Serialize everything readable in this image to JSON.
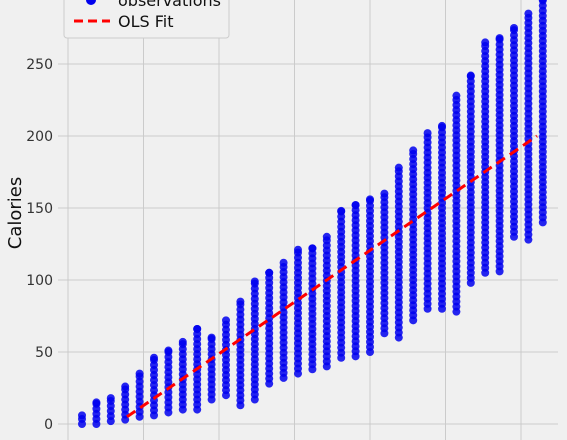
{
  "colors": {
    "background": "#f0f0f0",
    "grid": "#cbcbcb",
    "points": "#0000ee",
    "fit": "#ff0000"
  },
  "chart_data": {
    "type": "scatter",
    "ylabel": "Calories",
    "xlabel": "",
    "ylim": [
      -5,
      300
    ],
    "y_ticks": [
      0,
      50,
      100,
      150,
      200,
      250
    ],
    "x_grid_count": 7,
    "grid": true,
    "legend": {
      "placement": "top-left",
      "entries": [
        {
          "label": "observations",
          "style": "marker"
        },
        {
          "label": "OLS Fit",
          "style": "dashed-line"
        }
      ]
    },
    "observation_columns": [
      {
        "min": 0,
        "max": 6
      },
      {
        "min": 0,
        "max": 15
      },
      {
        "min": 2,
        "max": 18
      },
      {
        "min": 3,
        "max": 26
      },
      {
        "min": 5,
        "max": 35
      },
      {
        "min": 6,
        "max": 46
      },
      {
        "min": 8,
        "max": 51
      },
      {
        "min": 10,
        "max": 57
      },
      {
        "min": 10,
        "max": 66
      },
      {
        "min": 17,
        "max": 60
      },
      {
        "min": 20,
        "max": 72
      },
      {
        "min": 13,
        "max": 85
      },
      {
        "min": 17,
        "max": 99
      },
      {
        "min": 28,
        "max": 105
      },
      {
        "min": 32,
        "max": 112
      },
      {
        "min": 35,
        "max": 121
      },
      {
        "min": 38,
        "max": 122
      },
      {
        "min": 40,
        "max": 130
      },
      {
        "min": 46,
        "max": 148
      },
      {
        "min": 47,
        "max": 152
      },
      {
        "min": 50,
        "max": 156
      },
      {
        "min": 63,
        "max": 160
      },
      {
        "min": 60,
        "max": 178
      },
      {
        "min": 72,
        "max": 190
      },
      {
        "min": 80,
        "max": 202
      },
      {
        "min": 80,
        "max": 207
      },
      {
        "min": 78,
        "max": 228
      },
      {
        "min": 98,
        "max": 242
      },
      {
        "min": 105,
        "max": 265
      },
      {
        "min": 106,
        "max": 268
      },
      {
        "min": 130,
        "max": 275
      },
      {
        "min": 128,
        "max": 285
      },
      {
        "min": 140,
        "max": 295
      }
    ],
    "fit_line": {
      "y_start": 5,
      "y_end": 200
    }
  }
}
